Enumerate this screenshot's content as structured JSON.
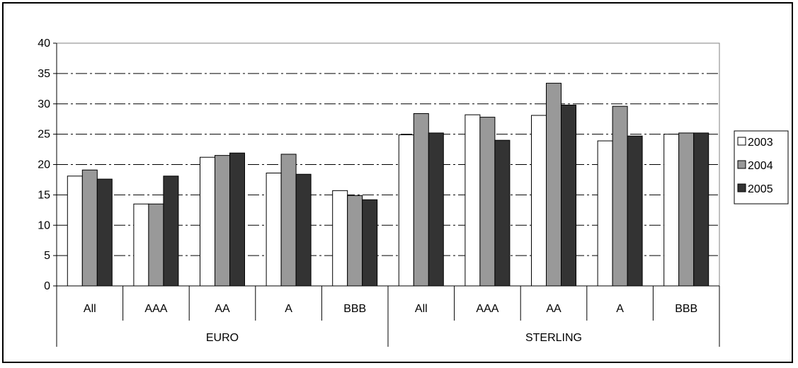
{
  "chart_data": {
    "type": "bar",
    "title": "",
    "xlabel": "",
    "ylabel": "",
    "ylim": [
      0,
      40
    ],
    "yticks": [
      0,
      5,
      10,
      15,
      20,
      25,
      30,
      35,
      40
    ],
    "grid": "dashed horizontal",
    "legend_position": "right",
    "groups": [
      {
        "label": "EURO",
        "categories": [
          "All",
          "AAA",
          "AA",
          "A",
          "BBB"
        ]
      },
      {
        "label": "STERLING",
        "categories": [
          "All",
          "AAA",
          "AA",
          "A",
          "BBB"
        ]
      }
    ],
    "series": [
      {
        "name": "2003",
        "color": "#ffffff",
        "values": [
          18.1,
          13.5,
          21.2,
          18.6,
          15.7,
          24.9,
          28.2,
          28.1,
          23.9,
          25.0
        ]
      },
      {
        "name": "2004",
        "color": "#999999",
        "values": [
          19.1,
          13.5,
          21.5,
          21.7,
          14.9,
          28.4,
          27.8,
          33.4,
          29.6,
          25.2
        ]
      },
      {
        "name": "2005",
        "color": "#333333",
        "values": [
          17.6,
          18.1,
          21.9,
          18.4,
          14.2,
          25.2,
          24.0,
          29.8,
          24.7,
          25.2
        ]
      }
    ]
  }
}
